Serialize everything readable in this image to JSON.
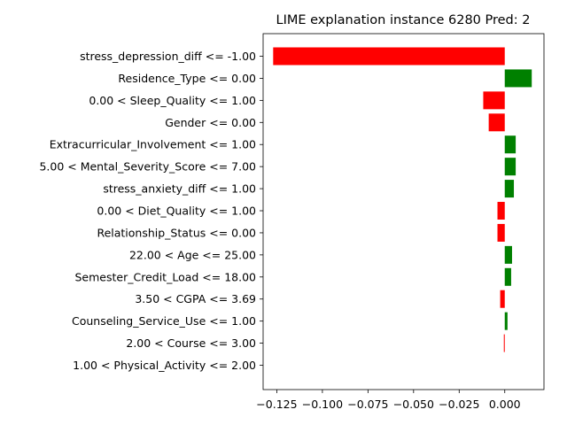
{
  "chart_data": {
    "type": "bar",
    "orientation": "horizontal",
    "title": "LIME explanation instance 6280 Pred: 2",
    "xlabel": "",
    "ylabel": "",
    "xlim": [
      -0.1325,
      0.0215
    ],
    "xticks": [
      -0.125,
      -0.1,
      -0.075,
      -0.05,
      -0.025,
      0.0
    ],
    "xtick_labels": [
      "−0.125",
      "−0.100",
      "−0.075",
      "−0.050",
      "−0.025",
      "0.000"
    ],
    "grid": false,
    "legend": "none",
    "colors": {
      "positive": "#008000",
      "negative": "#ff0000"
    },
    "categories": [
      "stress_depression_diff <= -1.00",
      "Residence_Type <= 0.00",
      "0.00 < Sleep_Quality <= 1.00",
      "Gender <= 0.00",
      "Extracurricular_Involvement <= 1.00",
      "5.00 < Mental_Severity_Score <= 7.00",
      "stress_anxiety_diff <= 1.00",
      "0.00 < Diet_Quality <= 1.00",
      "Relationship_Status <= 0.00",
      "22.00 < Age <= 25.00",
      "Semester_Credit_Load <= 18.00",
      "3.50 < CGPA <= 3.69",
      "Counseling_Service_Use <= 1.00",
      "2.00 < Course <= 3.00",
      "1.00 < Physical_Activity <= 2.00"
    ],
    "values": [
      -0.127,
      0.0148,
      -0.0118,
      -0.0088,
      0.006,
      0.006,
      0.005,
      -0.004,
      -0.004,
      0.004,
      0.0035,
      -0.0025,
      0.0015,
      -0.0005,
      0.0
    ]
  }
}
